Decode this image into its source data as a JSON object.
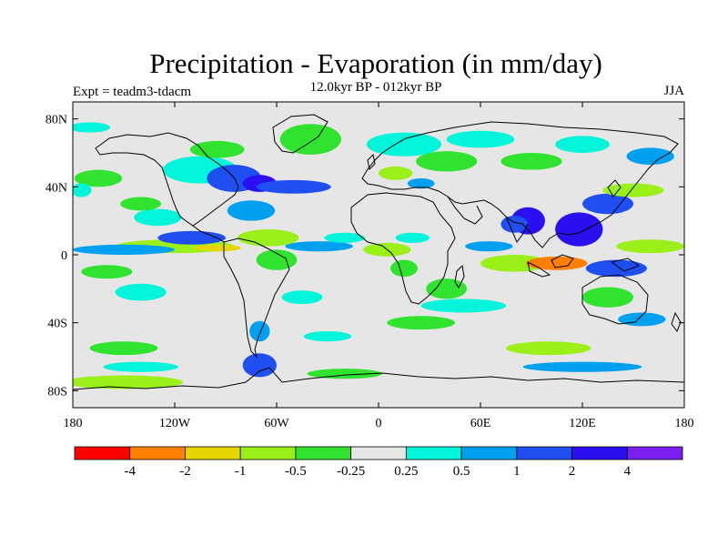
{
  "title": "Precipitation - Evaporation (in mm/day)",
  "subtitle": "12.0kyr BP - 012kyr BP",
  "experiment_label": "Expt = teadm3-tdacm",
  "season_label": "JJA",
  "map": {
    "projection": "cylindrical-equidistant",
    "lon_range": [
      -180,
      180
    ],
    "lat_range": [
      -90,
      90
    ],
    "background_color": "#e6e6e6",
    "coastline_color": "#000000",
    "lat_ticks": [
      {
        "value": 80,
        "label": "80N"
      },
      {
        "value": 40,
        "label": "40N"
      },
      {
        "value": 0,
        "label": "0"
      },
      {
        "value": -40,
        "label": "40S"
      },
      {
        "value": -80,
        "label": "80S"
      }
    ],
    "lon_ticks": [
      {
        "value": -180,
        "label": "180"
      },
      {
        "value": -120,
        "label": "120W"
      },
      {
        "value": -60,
        "label": "60W"
      },
      {
        "value": 0,
        "label": "0"
      },
      {
        "value": 60,
        "label": "60E"
      },
      {
        "value": 120,
        "label": "120E"
      },
      {
        "value": 180,
        "label": "180"
      }
    ]
  },
  "colorbar": {
    "colors": [
      "#ff0000",
      "#ff7f00",
      "#e6d500",
      "#9cf01a",
      "#2fe32f",
      "#e6e6e6",
      "#00f5da",
      "#00a0f0",
      "#1f4ff0",
      "#2a0ff0",
      "#7a1ff0"
    ],
    "labels": [
      "-4",
      "-2",
      "-1",
      "-0.5",
      "-0.25",
      "0.25",
      "0.5",
      "1",
      "2",
      "4"
    ]
  },
  "chart_data": {
    "type": "heatmap",
    "title": "Precipitation - Evaporation (in mm/day)",
    "subtitle": "12.0kyr BP - 012kyr BP",
    "units": "mm/day",
    "xlim": [
      -180,
      180
    ],
    "ylim": [
      -90,
      90
    ],
    "levels": [
      -4,
      -2,
      -1,
      -0.5,
      -0.25,
      0.25,
      0.5,
      1,
      2,
      4
    ],
    "regions": [
      {
        "lon": -130,
        "lat": 22,
        "rlon": 14,
        "rlat": 5,
        "level": 0.25,
        "value": 0.4
      },
      {
        "lon": -120,
        "lat": 5,
        "rlon": 35,
        "rlat": 4,
        "level": -0.5,
        "value": -0.6
      },
      {
        "lon": -150,
        "lat": 3,
        "rlon": 30,
        "rlat": 3,
        "level": 0.5,
        "value": 0.8
      },
      {
        "lon": -110,
        "lat": 10,
        "rlon": 20,
        "rlat": 4,
        "level": 1,
        "value": 1.5
      },
      {
        "lon": -95,
        "lat": 4,
        "rlon": 14,
        "rlat": 2,
        "level": -1,
        "value": -1.2
      },
      {
        "lon": -165,
        "lat": 45,
        "rlon": 14,
        "rlat": 5,
        "level": -0.25,
        "value": -0.3
      },
      {
        "lon": -175,
        "lat": 38,
        "rlon": 6,
        "rlat": 4,
        "level": 0.25,
        "value": 0.3
      },
      {
        "lon": -140,
        "lat": 30,
        "rlon": 12,
        "rlat": 4,
        "level": -0.25,
        "value": -0.3
      },
      {
        "lon": -160,
        "lat": -10,
        "rlon": 15,
        "rlat": 4,
        "level": -0.25,
        "value": -0.3
      },
      {
        "lon": -140,
        "lat": -22,
        "rlon": 15,
        "rlat": 5,
        "level": 0.25,
        "value": 0.3
      },
      {
        "lon": -150,
        "lat": -55,
        "rlon": 20,
        "rlat": 4,
        "level": -0.25,
        "value": -0.3
      },
      {
        "lon": -140,
        "lat": -66,
        "rlon": 22,
        "rlat": 3,
        "level": 0.25,
        "value": 0.3
      },
      {
        "lon": -150,
        "lat": -75,
        "rlon": 35,
        "rlat": 4,
        "level": -0.5,
        "value": -0.7
      },
      {
        "lon": -105,
        "lat": 50,
        "rlon": 22,
        "rlat": 8,
        "level": 0.25,
        "value": 0.4
      },
      {
        "lon": -85,
        "lat": 45,
        "rlon": 16,
        "rlat": 8,
        "level": 1,
        "value": 1.4
      },
      {
        "lon": -70,
        "lat": 42,
        "rlon": 10,
        "rlat": 5,
        "level": 2,
        "value": 2.5
      },
      {
        "lon": -95,
        "lat": 62,
        "rlon": 16,
        "rlat": 5,
        "level": -0.25,
        "value": -0.3
      },
      {
        "lon": -75,
        "lat": 26,
        "rlon": 14,
        "rlat": 6,
        "level": 0.5,
        "value": 0.7
      },
      {
        "lon": -50,
        "lat": 40,
        "rlon": 22,
        "rlat": 4,
        "level": 1,
        "value": 1.2
      },
      {
        "lon": -40,
        "lat": 68,
        "rlon": 18,
        "rlat": 9,
        "level": -0.25,
        "value": -0.3
      },
      {
        "lon": -65,
        "lat": 10,
        "rlon": 18,
        "rlat": 5,
        "level": -0.5,
        "value": -0.6
      },
      {
        "lon": -35,
        "lat": 5,
        "rlon": 20,
        "rlat": 3,
        "level": 0.5,
        "value": 0.6
      },
      {
        "lon": -60,
        "lat": -3,
        "rlon": 12,
        "rlat": 6,
        "level": -0.25,
        "value": -0.3
      },
      {
        "lon": -45,
        "lat": -25,
        "rlon": 12,
        "rlat": 4,
        "level": 0.25,
        "value": 0.3
      },
      {
        "lon": -70,
        "lat": -45,
        "rlon": 6,
        "rlat": 6,
        "level": 0.5,
        "value": 0.7
      },
      {
        "lon": -70,
        "lat": -65,
        "rlon": 10,
        "rlat": 7,
        "level": 1,
        "value": 1.3
      },
      {
        "lon": -30,
        "lat": -48,
        "rlon": 14,
        "rlat": 3,
        "level": 0.25,
        "value": 0.3
      },
      {
        "lon": -20,
        "lat": 10,
        "rlon": 12,
        "rlat": 3,
        "level": 0.25,
        "value": 0.3
      },
      {
        "lon": 5,
        "lat": 3,
        "rlon": 14,
        "rlat": 4,
        "level": -0.5,
        "value": -0.6
      },
      {
        "lon": 20,
        "lat": 10,
        "rlon": 10,
        "rlat": 3,
        "level": 0.25,
        "value": 0.3
      },
      {
        "lon": 15,
        "lat": -8,
        "rlon": 8,
        "rlat": 5,
        "level": -0.25,
        "value": -0.3
      },
      {
        "lon": 40,
        "lat": -20,
        "rlon": 12,
        "rlat": 6,
        "level": -0.25,
        "value": -0.4
      },
      {
        "lon": 25,
        "lat": -40,
        "rlon": 20,
        "rlat": 4,
        "level": -0.25,
        "value": -0.3
      },
      {
        "lon": 15,
        "lat": 65,
        "rlon": 22,
        "rlat": 7,
        "level": 0.25,
        "value": 0.3
      },
      {
        "lon": 40,
        "lat": 55,
        "rlon": 18,
        "rlat": 6,
        "level": -0.25,
        "value": -0.3
      },
      {
        "lon": 60,
        "lat": 68,
        "rlon": 20,
        "rlat": 5,
        "level": 0.25,
        "value": 0.3
      },
      {
        "lon": 10,
        "lat": 48,
        "rlon": 10,
        "rlat": 4,
        "level": -0.5,
        "value": -0.6
      },
      {
        "lon": 50,
        "lat": -30,
        "rlon": 25,
        "rlat": 4,
        "level": 0.25,
        "value": 0.3
      },
      {
        "lon": 80,
        "lat": -5,
        "rlon": 20,
        "rlat": 5,
        "level": -0.5,
        "value": -0.7
      },
      {
        "lon": 65,
        "lat": 5,
        "rlon": 14,
        "rlat": 3,
        "level": 0.5,
        "value": 0.6
      },
      {
        "lon": 88,
        "lat": 20,
        "rlon": 10,
        "rlat": 8,
        "level": 2,
        "value": 2.6
      },
      {
        "lon": 80,
        "lat": 18,
        "rlon": 8,
        "rlat": 5,
        "level": 1,
        "value": 1.3
      },
      {
        "lon": 118,
        "lat": 15,
        "rlon": 14,
        "rlat": 10,
        "level": 2,
        "value": 3.0
      },
      {
        "lon": 135,
        "lat": 30,
        "rlon": 15,
        "rlat": 6,
        "level": 1,
        "value": 1.5
      },
      {
        "lon": 150,
        "lat": 38,
        "rlon": 18,
        "rlat": 4,
        "level": -0.5,
        "value": -0.6
      },
      {
        "lon": 105,
        "lat": -5,
        "rlon": 18,
        "rlat": 4,
        "level": -2,
        "value": -2.5
      },
      {
        "lon": 140,
        "lat": -8,
        "rlon": 18,
        "rlat": 5,
        "level": 1,
        "value": 1.5
      },
      {
        "lon": 160,
        "lat": 5,
        "rlon": 20,
        "rlat": 4,
        "level": -0.5,
        "value": -0.7
      },
      {
        "lon": 135,
        "lat": -25,
        "rlon": 15,
        "rlat": 6,
        "level": -0.25,
        "value": -0.3
      },
      {
        "lon": 155,
        "lat": -38,
        "rlon": 14,
        "rlat": 4,
        "level": 0.5,
        "value": 0.6
      },
      {
        "lon": 100,
        "lat": -55,
        "rlon": 25,
        "rlat": 4,
        "level": -0.5,
        "value": -0.6
      },
      {
        "lon": 120,
        "lat": -66,
        "rlon": 35,
        "rlat": 3,
        "level": 0.5,
        "value": 0.7
      },
      {
        "lon": 90,
        "lat": 55,
        "rlon": 18,
        "rlat": 5,
        "level": -0.25,
        "value": -0.3
      },
      {
        "lon": 120,
        "lat": 65,
        "rlon": 16,
        "rlat": 5,
        "level": 0.25,
        "value": 0.3
      },
      {
        "lon": 160,
        "lat": 58,
        "rlon": 14,
        "rlat": 5,
        "level": 0.5,
        "value": 0.6
      },
      {
        "lon": 25,
        "lat": 42,
        "rlon": 8,
        "rlat": 3,
        "level": 0.5,
        "value": 0.6
      },
      {
        "lon": -170,
        "lat": 75,
        "rlon": 12,
        "rlat": 3,
        "level": 0.25,
        "value": 0.3
      },
      {
        "lon": -20,
        "lat": -70,
        "rlon": 22,
        "rlat": 3,
        "level": -0.25,
        "value": -0.3
      }
    ]
  }
}
